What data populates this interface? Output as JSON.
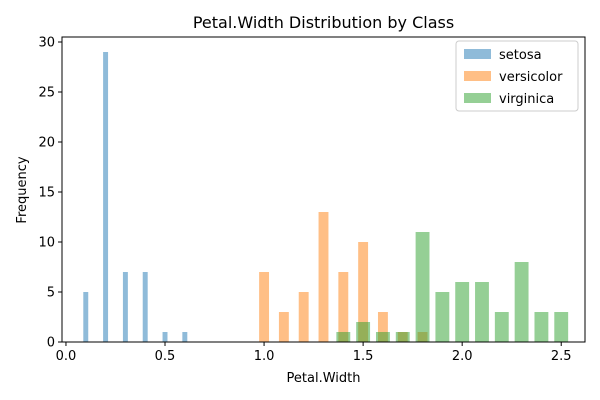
{
  "chart_data": {
    "type": "bar",
    "title": "Petal.Width Distribution by Class",
    "xlabel": "Petal.Width",
    "ylabel": "Frequency",
    "xlim": [
      -0.02,
      2.62
    ],
    "ylim": [
      0,
      30.5
    ],
    "x_ticks": [
      0.0,
      0.5,
      1.0,
      1.5,
      2.0,
      2.5
    ],
    "x_tick_labels": [
      "0.0",
      "0.5",
      "1.0",
      "1.5",
      "2.0",
      "2.5"
    ],
    "y_ticks": [
      0,
      5,
      10,
      15,
      20,
      25,
      30
    ],
    "y_tick_labels": [
      "0",
      "5",
      "10",
      "15",
      "20",
      "25",
      "30"
    ],
    "grid": false,
    "legend_position": "top-right",
    "series": [
      {
        "name": "setosa",
        "color": "#1f77b4",
        "opacity": 0.5,
        "bin_width": 0.025,
        "bins": [
          {
            "x": 0.1,
            "value": 5
          },
          {
            "x": 0.2,
            "value": 29
          },
          {
            "x": 0.3,
            "value": 7
          },
          {
            "x": 0.4,
            "value": 7
          },
          {
            "x": 0.5,
            "value": 1
          },
          {
            "x": 0.6,
            "value": 1
          }
        ]
      },
      {
        "name": "versicolor",
        "color": "#ff7f0e",
        "opacity": 0.5,
        "bin_width": 0.05,
        "bins": [
          {
            "x": 1.0,
            "value": 7
          },
          {
            "x": 1.1,
            "value": 3
          },
          {
            "x": 1.2,
            "value": 5
          },
          {
            "x": 1.3,
            "value": 13
          },
          {
            "x": 1.4,
            "value": 7
          },
          {
            "x": 1.5,
            "value": 10
          },
          {
            "x": 1.6,
            "value": 3
          },
          {
            "x": 1.7,
            "value": 1
          },
          {
            "x": 1.8,
            "value": 1
          }
        ]
      },
      {
        "name": "virginica",
        "color": "#2ca02c",
        "opacity": 0.5,
        "bin_width": 0.07,
        "bins": [
          {
            "x": 1.4,
            "value": 1
          },
          {
            "x": 1.5,
            "value": 2
          },
          {
            "x": 1.6,
            "value": 1
          },
          {
            "x": 1.7,
            "value": 1
          },
          {
            "x": 1.8,
            "value": 11
          },
          {
            "x": 1.9,
            "value": 5
          },
          {
            "x": 2.0,
            "value": 6
          },
          {
            "x": 2.1,
            "value": 6
          },
          {
            "x": 2.2,
            "value": 3
          },
          {
            "x": 2.3,
            "value": 8
          },
          {
            "x": 2.4,
            "value": 3
          },
          {
            "x": 2.5,
            "value": 3
          }
        ]
      }
    ]
  }
}
